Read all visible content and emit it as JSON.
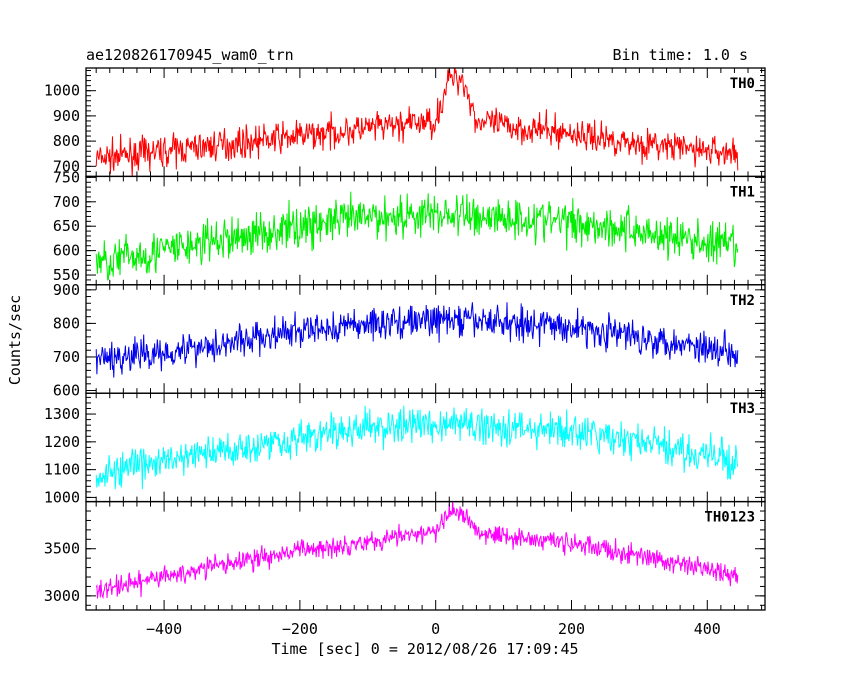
{
  "header": {
    "title": "ae120826170945_wam0_trn",
    "bin_time": "Bin time: 1.0 s"
  },
  "axes": {
    "ylabel": "Counts/sec",
    "xlabel": "Time [sec] 0 = 2012/08/26 17:09:45"
  },
  "chart_data": {
    "type": "line",
    "title": "ae120826170945_wam0_trn",
    "xlabel": "Time [sec] 0 = 2012/08/26 17:09:45",
    "ylabel": "Counts/sec",
    "xlim": [
      -515,
      485
    ],
    "x_ticks": [
      -400,
      -200,
      0,
      200,
      400
    ],
    "x_tick_labels": [
      "−400",
      "−200",
      "0",
      "200",
      "400"
    ],
    "bin_time_s": 1.0,
    "x_range": [
      -500,
      445
    ],
    "panels": [
      {
        "name": "TH0",
        "color": "#ff0000",
        "ylim": [
          660,
          1090
        ],
        "y_ticks": [
          700,
          800,
          900,
          1000
        ],
        "envelope": {
          "t": [
            -500,
            -400,
            -300,
            -200,
            -100,
            0,
            20,
            40,
            60,
            100,
            200,
            300,
            445
          ],
          "mean": [
            730,
            760,
            790,
            820,
            850,
            880,
            1050,
            1050,
            880,
            860,
            830,
            790,
            750
          ]
        },
        "noise": 30
      },
      {
        "name": "TH1",
        "color": "#00ee00",
        "ylim": [
          530,
          752
        ],
        "y_ticks": [
          550,
          600,
          650,
          700,
          750
        ],
        "envelope": {
          "t": [
            -500,
            -400,
            -300,
            -200,
            -100,
            0,
            100,
            200,
            300,
            400,
            445
          ],
          "mean": [
            575,
            600,
            625,
            650,
            668,
            675,
            668,
            660,
            640,
            615,
            605
          ]
        },
        "noise": 22
      },
      {
        "name": "TH2",
        "color": "#0000ee",
        "ylim": [
          592,
          915
        ],
        "y_ticks": [
          600,
          700,
          800,
          900
        ],
        "envelope": {
          "t": [
            -500,
            -400,
            -300,
            -200,
            -100,
            0,
            100,
            200,
            300,
            400,
            445
          ],
          "mean": [
            690,
            715,
            745,
            775,
            800,
            810,
            805,
            790,
            760,
            730,
            715
          ]
        },
        "noise": 25
      },
      {
        "name": "TH3",
        "color": "#00ffff",
        "ylim": [
          985,
          1375
        ],
        "y_ticks": [
          1000,
          1100,
          1200,
          1300
        ],
        "envelope": {
          "t": [
            -500,
            -400,
            -300,
            -200,
            -100,
            0,
            100,
            200,
            300,
            400,
            445
          ],
          "mean": [
            1080,
            1130,
            1175,
            1215,
            1250,
            1265,
            1255,
            1235,
            1200,
            1150,
            1125
          ]
        },
        "noise": 32
      },
      {
        "name": "TH0123",
        "color": "#ff00ff",
        "ylim": [
          2850,
          4000
        ],
        "y_ticks": [
          3000,
          3500
        ],
        "envelope": {
          "t": [
            -500,
            -400,
            -300,
            -200,
            -100,
            0,
            20,
            40,
            60,
            100,
            200,
            300,
            400,
            445
          ],
          "mean": [
            3050,
            3200,
            3350,
            3480,
            3580,
            3680,
            3880,
            3880,
            3700,
            3640,
            3560,
            3420,
            3280,
            3220
          ]
        },
        "noise": 55
      }
    ]
  }
}
